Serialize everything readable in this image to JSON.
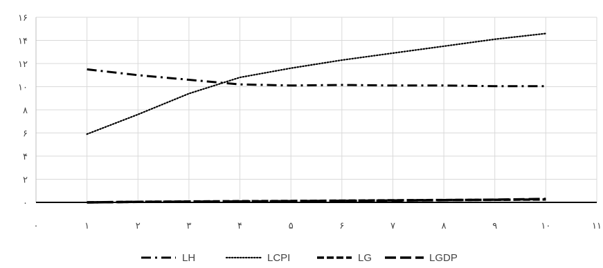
{
  "chart_data": {
    "type": "line",
    "title": "",
    "xlabel": "",
    "ylabel": "",
    "xlim": [
      0,
      11
    ],
    "ylim": [
      0,
      16
    ],
    "x_ticks": [
      0,
      1,
      2,
      3,
      4,
      5,
      6,
      7,
      8,
      9,
      10,
      11
    ],
    "x_tick_labels": [
      "۰",
      "۱",
      "۲",
      "۳",
      "۴",
      "۵",
      "۶",
      "۷",
      "۸",
      "۹",
      "۱۰",
      "۱۱"
    ],
    "y_ticks": [
      0,
      2,
      4,
      6,
      8,
      10,
      12,
      14,
      16
    ],
    "y_tick_labels": [
      "۰",
      "۲",
      "۴",
      "۶",
      "۸",
      "۱۰",
      "۱۲",
      "۱۴",
      "۱۶"
    ],
    "grid": true,
    "legend_position": "bottom",
    "x": [
      1,
      2,
      3,
      4,
      5,
      6,
      7,
      8,
      9,
      10
    ],
    "series": [
      {
        "name": "LH",
        "dash": "dash-dot",
        "values": [
          11.5,
          11.0,
          10.6,
          10.2,
          10.1,
          10.15,
          10.1,
          10.1,
          10.05,
          10.05
        ]
      },
      {
        "name": "LCPI",
        "dash": "dotted",
        "values": [
          5.9,
          7.6,
          9.4,
          10.8,
          11.6,
          12.3,
          12.9,
          13.5,
          14.1,
          14.6
        ]
      },
      {
        "name": "LG",
        "dash": "dashed",
        "values": [
          0.0,
          0.05,
          0.08,
          0.1,
          0.12,
          0.15,
          0.18,
          0.2,
          0.22,
          0.25
        ]
      },
      {
        "name": "LGDP",
        "dash": "long-dash",
        "values": [
          0.0,
          0.04,
          0.06,
          0.08,
          0.1,
          0.13,
          0.16,
          0.19,
          0.23,
          0.3
        ]
      }
    ]
  }
}
